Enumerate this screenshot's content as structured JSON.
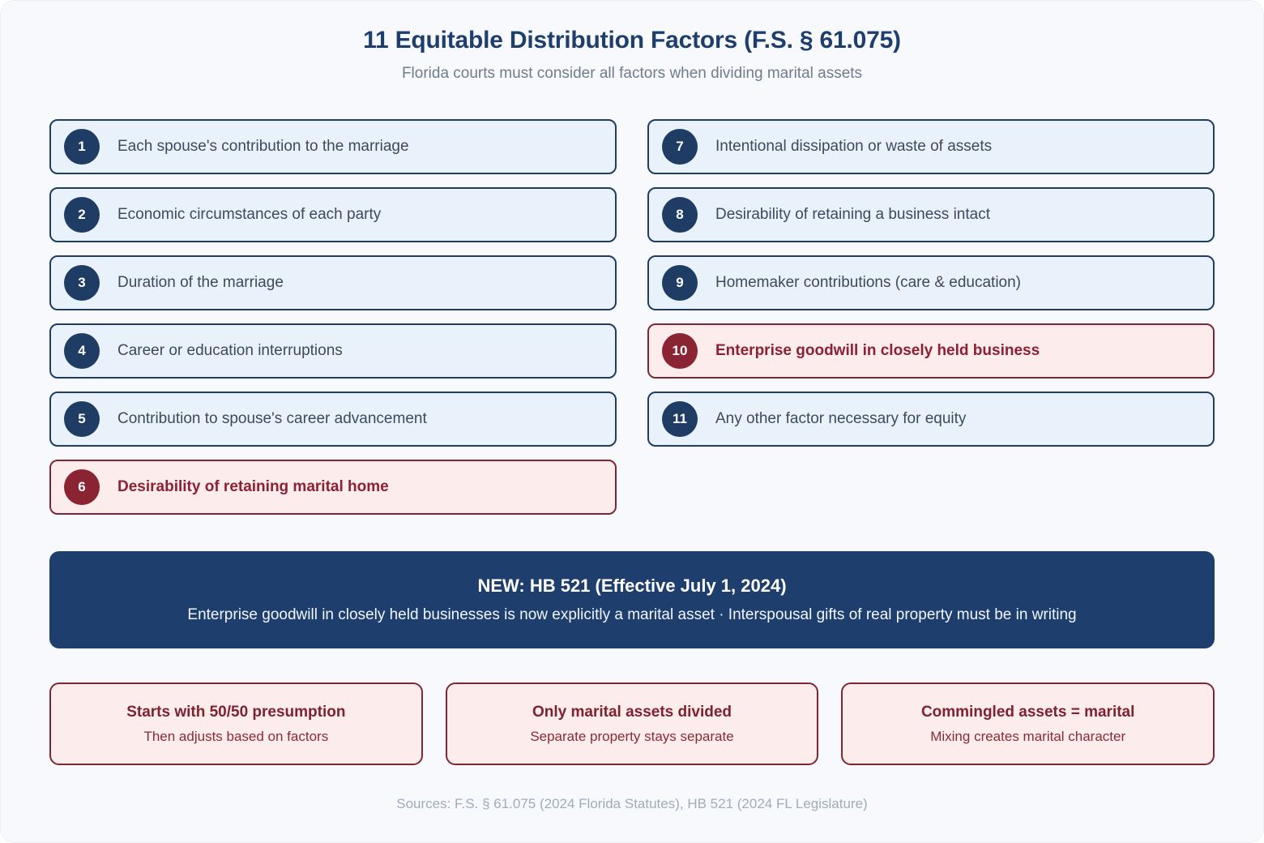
{
  "header": {
    "title": "11 Equitable Distribution Factors (F.S. § 61.075)",
    "subtitle": "Florida courts must consider all factors when dividing marital assets"
  },
  "factors": [
    {
      "num": "1",
      "label": "Each spouse's contribution to the marriage",
      "highlight": false
    },
    {
      "num": "2",
      "label": "Economic circumstances of each party",
      "highlight": false
    },
    {
      "num": "3",
      "label": "Duration of the marriage",
      "highlight": false
    },
    {
      "num": "4",
      "label": "Career or education interruptions",
      "highlight": false
    },
    {
      "num": "5",
      "label": "Contribution to spouse's career advancement",
      "highlight": false
    },
    {
      "num": "6",
      "label": "Desirability of retaining marital home",
      "highlight": true
    },
    {
      "num": "7",
      "label": "Intentional dissipation or waste of assets",
      "highlight": false
    },
    {
      "num": "8",
      "label": "Desirability of retaining a business intact",
      "highlight": false
    },
    {
      "num": "9",
      "label": "Homemaker contributions (care & education)",
      "highlight": false
    },
    {
      "num": "10",
      "label": "Enterprise goodwill in closely held business",
      "highlight": true
    },
    {
      "num": "11",
      "label": "Any other factor necessary for equity",
      "highlight": false
    }
  ],
  "banner": {
    "title": "NEW: HB 521 (Effective July 1, 2024)",
    "body": "Enterprise goodwill in closely held businesses is now explicitly a marital asset · Interspousal gifts of real property must be in writing"
  },
  "principles": [
    {
      "title": "Starts with 50/50 presumption",
      "subtitle": "Then adjusts based on factors"
    },
    {
      "title": "Only marital assets divided",
      "subtitle": "Separate property stays separate"
    },
    {
      "title": "Commingled assets = marital",
      "subtitle": "Mixing creates marital character"
    }
  ],
  "footer": {
    "sources": "Sources: F.S. § 61.075 (2024 Florida Statutes), HB 521 (2024 FL Legislature)"
  },
  "colors": {
    "navy": "#1e3f6d",
    "navy_badge": "#1e3c64",
    "factor_bg": "#e9f1fb",
    "maroon_border": "#7e2734",
    "maroon_badge": "#8a2433",
    "maroon_text": "#8a2134",
    "pink_bg": "#fdecec",
    "label_text": "#3c4a5e",
    "subtitle_gray": "#707c8c",
    "footer_gray": "#a2abbc",
    "page_bg": "#f7f9fc"
  }
}
